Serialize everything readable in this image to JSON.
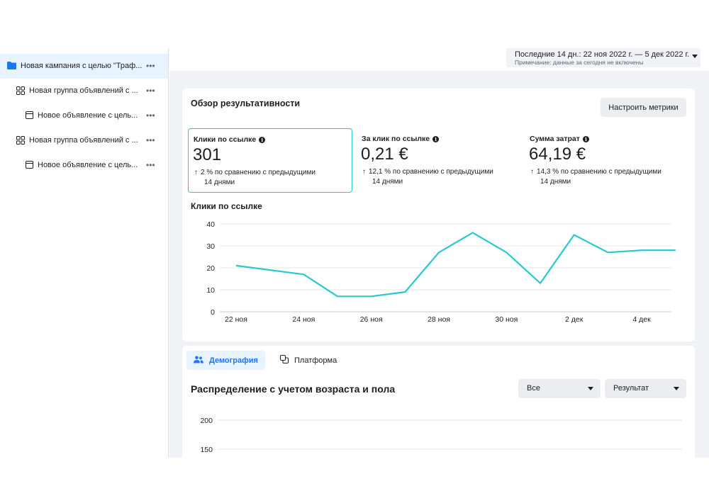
{
  "sidebar": {
    "items": [
      {
        "label": "Новая кампания с целью \"Траф...",
        "icon": "folder-icon",
        "more": "•••"
      },
      {
        "label": "Новая группа объявлений с ...",
        "icon": "grid-icon",
        "more": "•••"
      },
      {
        "label": "Новое объявление с цель...",
        "icon": "ad-icon",
        "more": "•••"
      },
      {
        "label": "Новая группа объявлений с ...",
        "icon": "grid-icon",
        "more": "•••"
      },
      {
        "label": "Новое объявление с цель...",
        "icon": "ad-icon",
        "more": "•••"
      }
    ]
  },
  "date_range": {
    "label": "Последние 14 дн.: 22 ноя 2022 г. — 5 дек 2022 г.",
    "note": "Примечание: данные за сегодня не включены"
  },
  "overview": {
    "title": "Обзор результативности",
    "configure_button": "Настроить метрики",
    "metrics": [
      {
        "title": "Клики по ссылке",
        "value": "301",
        "change_line1": "2 % по сравнению с предыдущими",
        "change_line2": "14 днями",
        "arrow": "↑"
      },
      {
        "title": "За клик по ссылке",
        "value": "0,21 €",
        "change_line1": "12,1 % по сравнению с предыдущими",
        "change_line2": "14 днями",
        "arrow": "↑"
      },
      {
        "title": "Сумма затрат",
        "value": "64,19 €",
        "change_line1": "14,3 % по сравнению с предыдущими",
        "change_line2": "14 днями",
        "arrow": "↑"
      }
    ],
    "info_glyph": "i"
  },
  "chart_data": {
    "type": "line",
    "title": "Клики по ссылке",
    "x": [
      "22 ноя",
      "23 ноя",
      "24 ноя",
      "25 ноя",
      "26 ноя",
      "27 ноя",
      "28 ноя",
      "29 ноя",
      "30 ноя",
      "1 дек",
      "2 дек",
      "3 дек",
      "4 дек",
      "5 дек"
    ],
    "tick_labels": [
      "22 ноя",
      "24 ноя",
      "26 ноя",
      "28 ноя",
      "30 ноя",
      "2 дек",
      "4 дек"
    ],
    "y_ticks": [
      "0",
      "10",
      "20",
      "30",
      "40"
    ],
    "series": [
      {
        "values": [
          21,
          19,
          17,
          7,
          7,
          9,
          27,
          36,
          27,
          13,
          35,
          27,
          28,
          28
        ]
      }
    ],
    "ylim": [
      0,
      40
    ],
    "grid": true,
    "color": "#2ac7d0"
  },
  "breakdown": {
    "tabs": [
      {
        "label": "Демография",
        "icon": "people-icon"
      },
      {
        "label": "Платформа",
        "icon": "platform-icon"
      }
    ],
    "title": "Распределение с учетом возраста и пола",
    "select_all": "Все",
    "select_result": "Результат",
    "y_ticks": [
      "200",
      "150"
    ]
  },
  "colors": {
    "accent": "#1877f2",
    "line": "#2ac7d0",
    "selected_bg": "#e7f3ff",
    "page_bg": "#f0f2f5"
  }
}
